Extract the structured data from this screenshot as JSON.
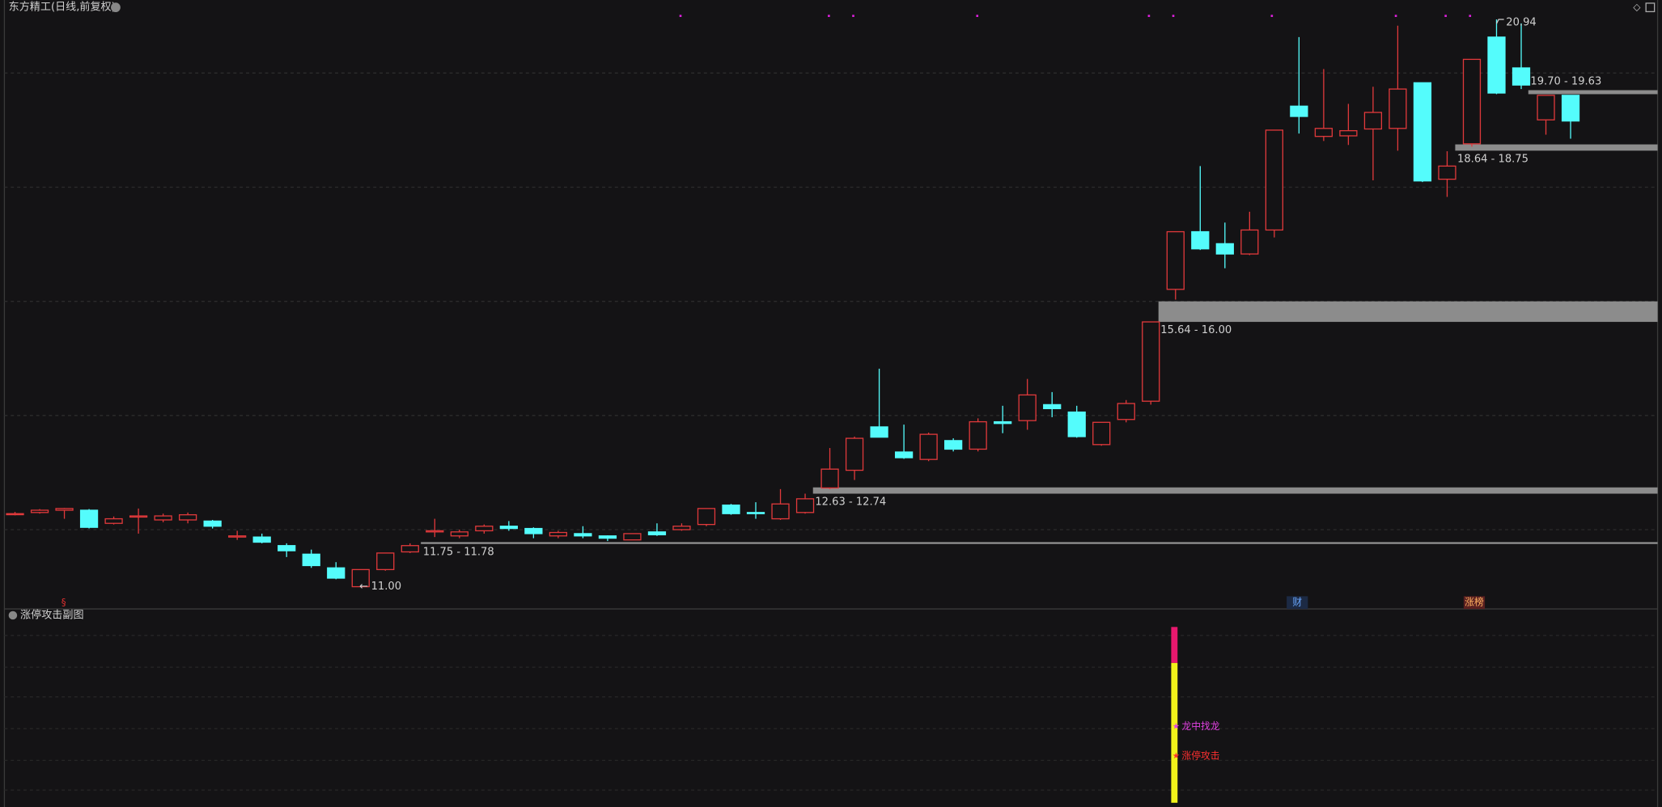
{
  "chart_data": {
    "type": "candlestick",
    "title": "东方精工(日线,前复权)",
    "up_color": "#e0393b",
    "down_color": "#54fcfc",
    "ylim": [
      10.61,
      21.28
    ],
    "grid_values": [
      12,
      14,
      16,
      18,
      20
    ],
    "open": [
      12.28,
      12.3,
      12.34,
      12.34,
      12.11,
      12.22,
      12.17,
      12.17,
      12.15,
      11.87,
      11.87,
      11.72,
      11.57,
      11.33,
      11.0,
      11.3,
      11.61,
      11.96,
      11.89,
      11.98,
      12.06,
      12.02,
      11.89,
      11.93,
      11.89,
      11.82,
      11.96,
      12.0,
      12.09,
      12.43,
      12.3,
      12.19,
      12.3,
      12.73,
      13.04,
      13.8,
      13.36,
      13.23,
      13.56,
      13.41,
      13.89,
      13.91,
      14.19,
      14.06,
      13.49,
      13.93,
      14.25,
      16.21,
      17.22,
      17.01,
      16.83,
      17.25,
      19.42,
      18.89,
      18.9,
      19.02,
      19.03,
      19.83,
      18.14,
      18.76,
      20.63,
      20.09,
      19.18,
      19.61
    ],
    "high": [
      12.31,
      12.36,
      12.38,
      12.36,
      12.23,
      12.37,
      12.28,
      12.3,
      12.17,
      11.98,
      11.93,
      11.76,
      11.65,
      11.43,
      11.3,
      11.59,
      11.76,
      12.19,
      12.0,
      12.09,
      12.15,
      12.04,
      11.98,
      12.06,
      11.9,
      11.93,
      12.11,
      12.11,
      12.37,
      12.45,
      12.48,
      12.71,
      12.63,
      13.43,
      13.63,
      14.82,
      13.84,
      13.7,
      13.6,
      13.95,
      14.17,
      14.64,
      14.41,
      14.17,
      13.88,
      14.27,
      15.64,
      17.22,
      18.37,
      17.38,
      17.57,
      19.0,
      20.63,
      20.07,
      19.46,
      19.76,
      20.83,
      19.83,
      18.63,
      20.24,
      20.94,
      20.87,
      19.61,
      19.61
    ],
    "low": [
      12.25,
      12.28,
      12.19,
      12.02,
      12.09,
      11.93,
      12.13,
      12.11,
      12.02,
      11.82,
      11.76,
      11.52,
      11.33,
      11.13,
      11.0,
      11.28,
      11.59,
      11.87,
      11.85,
      11.93,
      11.98,
      11.85,
      11.85,
      11.85,
      11.8,
      11.82,
      11.89,
      11.98,
      12.06,
      12.26,
      12.19,
      12.17,
      12.28,
      12.71,
      12.87,
      13.62,
      13.24,
      13.2,
      13.37,
      13.37,
      13.69,
      13.75,
      13.97,
      13.61,
      13.47,
      13.88,
      14.19,
      16.03,
      16.9,
      16.58,
      16.81,
      17.12,
      18.94,
      18.81,
      18.74,
      18.12,
      18.64,
      18.09,
      17.83,
      18.71,
      19.63,
      19.72,
      18.92,
      18.85
    ],
    "close": [
      12.28,
      12.34,
      12.37,
      12.04,
      12.19,
      12.24,
      12.24,
      12.26,
      12.06,
      11.89,
      11.78,
      11.63,
      11.37,
      11.15,
      11.3,
      11.59,
      11.72,
      11.98,
      11.96,
      12.06,
      12.02,
      11.93,
      11.95,
      11.89,
      11.85,
      11.93,
      11.91,
      12.06,
      12.37,
      12.28,
      12.28,
      12.45,
      12.54,
      13.06,
      13.6,
      13.62,
      13.26,
      13.67,
      13.41,
      13.89,
      13.86,
      14.36,
      14.12,
      13.63,
      13.88,
      14.21,
      15.64,
      17.22,
      16.92,
      16.83,
      17.25,
      19.0,
      19.24,
      19.03,
      18.99,
      19.31,
      19.72,
      18.11,
      18.37,
      20.24,
      19.65,
      19.79,
      19.61,
      19.16
    ],
    "zones": [
      {
        "label": "11.75 - 11.78",
        "low": 11.75,
        "high": 11.78
      },
      {
        "label": "12.63 - 12.74",
        "low": 12.63,
        "high": 12.74
      },
      {
        "label": "15.64 - 16.00",
        "low": 15.64,
        "high": 16.0
      },
      {
        "label": "18.64 - 18.75",
        "low": 18.64,
        "high": 18.75
      },
      {
        "label": "19.70 - 19.63",
        "low": 19.63,
        "high": 19.7
      }
    ],
    "low_mark": {
      "label": "11.00",
      "value": 11.0
    },
    "high_mark": {
      "label": "20.94",
      "value": 20.94
    },
    "event_labels": [
      "§",
      "财",
      "涨榜"
    ],
    "subchart": {
      "title": "涨停攻击副图",
      "signals": [
        "龙中找龙",
        "涨停攻击"
      ]
    }
  }
}
